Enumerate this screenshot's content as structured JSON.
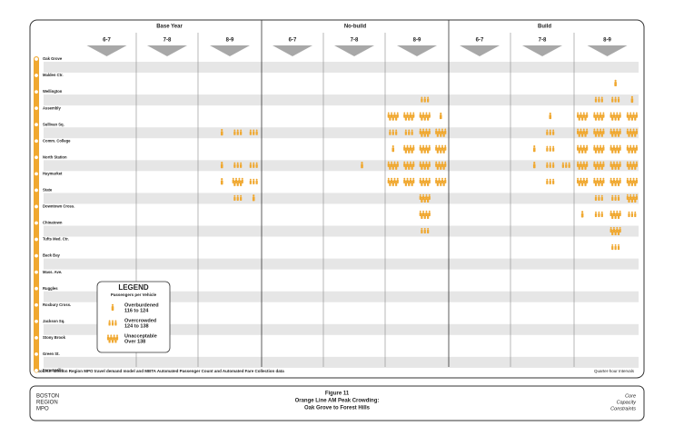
{
  "header": {
    "groups": [
      "Base Year",
      "No-build",
      "Build"
    ],
    "intervals": [
      "6-7",
      "7-8",
      "8-9",
      "6-7",
      "7-8",
      "8-9",
      "6-7",
      "7-8",
      "8-9"
    ]
  },
  "stations": [
    "Oak Grove",
    "Malden Ctr.",
    "Wellington",
    "Assembly",
    "Sullivan Sq.",
    "Comm. College",
    "North Station",
    "Haymarket",
    "State",
    "Downtown Cross.",
    "Chinatown",
    "Tufts Med. Ctr.",
    "Back Bay",
    "Mass. Ave.",
    "Ruggles",
    "Roxbury Cross.",
    "Jackson Sq.",
    "Stony Brook",
    "Green St.",
    "Forest Hills"
  ],
  "legend": {
    "title": "LEGEND",
    "subtitle": "Passengers per Vehicle",
    "items": [
      {
        "label": "Overburdened",
        "range": "116 to 124"
      },
      {
        "label": "Overcrowded",
        "range": "124 to 138"
      },
      {
        "label": "Unacceptable",
        "range": "Over 138"
      }
    ]
  },
  "crowding": [
    {
      "segment": 4,
      "column": 2,
      "icons": [
        null,
        0,
        1,
        1
      ]
    },
    {
      "segment": 6,
      "column": 2,
      "icons": [
        null,
        0,
        1,
        1
      ]
    },
    {
      "segment": 7,
      "column": 2,
      "icons": [
        null,
        0,
        2,
        1
      ]
    },
    {
      "segment": 8,
      "column": 2,
      "icons": [
        null,
        null,
        1,
        0
      ]
    },
    {
      "segment": 6,
      "column": 4,
      "icons": [
        null,
        null,
        0,
        null
      ]
    },
    {
      "segment": 2,
      "column": 5,
      "icons": [
        null,
        null,
        1,
        null
      ]
    },
    {
      "segment": 3,
      "column": 5,
      "icons": [
        2,
        2,
        2,
        0
      ]
    },
    {
      "segment": 4,
      "column": 5,
      "icons": [
        1,
        1,
        2,
        2
      ]
    },
    {
      "segment": 5,
      "column": 5,
      "icons": [
        0,
        2,
        2,
        2
      ]
    },
    {
      "segment": 6,
      "column": 5,
      "icons": [
        2,
        2,
        2,
        2
      ]
    },
    {
      "segment": 7,
      "column": 5,
      "icons": [
        2,
        2,
        2,
        2
      ]
    },
    {
      "segment": 8,
      "column": 5,
      "icons": [
        null,
        null,
        2,
        null
      ]
    },
    {
      "segment": 9,
      "column": 5,
      "icons": [
        null,
        null,
        2,
        null
      ]
    },
    {
      "segment": 10,
      "column": 5,
      "icons": [
        null,
        null,
        1,
        null
      ]
    },
    {
      "segment": 3,
      "column": 7,
      "icons": [
        null,
        null,
        0,
        null
      ]
    },
    {
      "segment": 4,
      "column": 7,
      "icons": [
        null,
        null,
        1,
        null
      ]
    },
    {
      "segment": 5,
      "column": 7,
      "icons": [
        null,
        0,
        1,
        null
      ]
    },
    {
      "segment": 6,
      "column": 7,
      "icons": [
        null,
        0,
        1,
        1
      ]
    },
    {
      "segment": 7,
      "column": 7,
      "icons": [
        null,
        null,
        1,
        null
      ]
    },
    {
      "segment": 1,
      "column": 8,
      "icons": [
        null,
        null,
        0,
        null
      ]
    },
    {
      "segment": 2,
      "column": 8,
      "icons": [
        null,
        1,
        1,
        0
      ]
    },
    {
      "segment": 3,
      "column": 8,
      "icons": [
        2,
        2,
        2,
        2
      ]
    },
    {
      "segment": 4,
      "column": 8,
      "icons": [
        2,
        2,
        2,
        2
      ]
    },
    {
      "segment": 5,
      "column": 8,
      "icons": [
        2,
        2,
        2,
        2
      ]
    },
    {
      "segment": 6,
      "column": 8,
      "icons": [
        2,
        2,
        2,
        2
      ]
    },
    {
      "segment": 7,
      "column": 8,
      "icons": [
        2,
        2,
        2,
        2
      ]
    },
    {
      "segment": 8,
      "column": 8,
      "icons": [
        null,
        1,
        1,
        2
      ]
    },
    {
      "segment": 9,
      "column": 8,
      "icons": [
        0,
        1,
        2,
        1
      ]
    },
    {
      "segment": 10,
      "column": 8,
      "icons": [
        null,
        null,
        2,
        null
      ]
    },
    {
      "segment": 11,
      "column": 8,
      "icons": [
        null,
        null,
        1,
        null
      ]
    }
  ],
  "source": "Source: Boston Region MPO travel demand model and MBTA Automated Passenger Count and Automated Fare Collection data",
  "note": "Quarter-hour Intervals",
  "footer": {
    "agency": [
      "BOSTON",
      "REGION",
      "MPO"
    ],
    "figure": "Figure 11",
    "title": [
      "Orange Line AM Peak Crowding:",
      "Oak Grove to Forest Hills"
    ],
    "series": [
      "Core",
      "Capacity",
      "Constraints"
    ]
  }
}
